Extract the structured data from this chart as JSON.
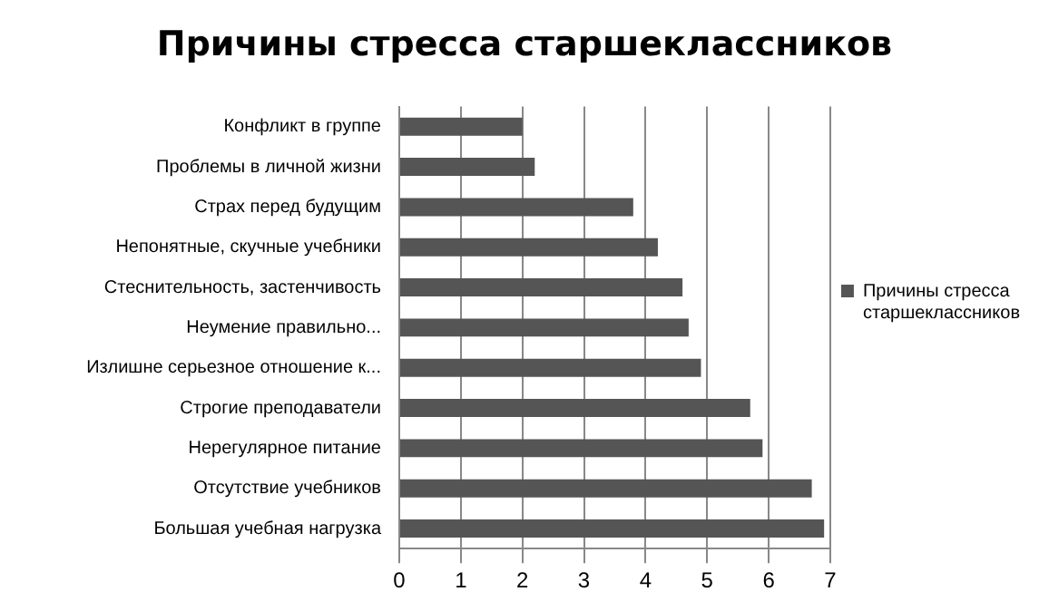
{
  "chart_data": {
    "type": "bar",
    "orientation": "horizontal",
    "title": "Причины стресса старшеклассников",
    "categories": [
      "Конфликт в группе",
      "Проблемы в личной жизни",
      "Страх перед будущим",
      "Непонятные, скучные учебники",
      "Стеснительность, застенчивость",
      "Неумение правильно...",
      "Излишне серьезное отношение к...",
      "Строгие преподаватели",
      "Нерегулярное питание",
      "Отсутствие учебников",
      "Большая учебная нагрузка"
    ],
    "series": [
      {
        "name": "Причины стресса старшеклассников",
        "color": "#555555",
        "values": [
          2.0,
          2.2,
          3.8,
          4.2,
          4.6,
          4.7,
          4.9,
          5.7,
          5.9,
          6.7,
          6.9
        ]
      }
    ],
    "xlim": [
      0,
      7
    ],
    "xticks": [
      0,
      1,
      2,
      3,
      4,
      5,
      6,
      7
    ],
    "grid": "x",
    "legend": "right"
  }
}
